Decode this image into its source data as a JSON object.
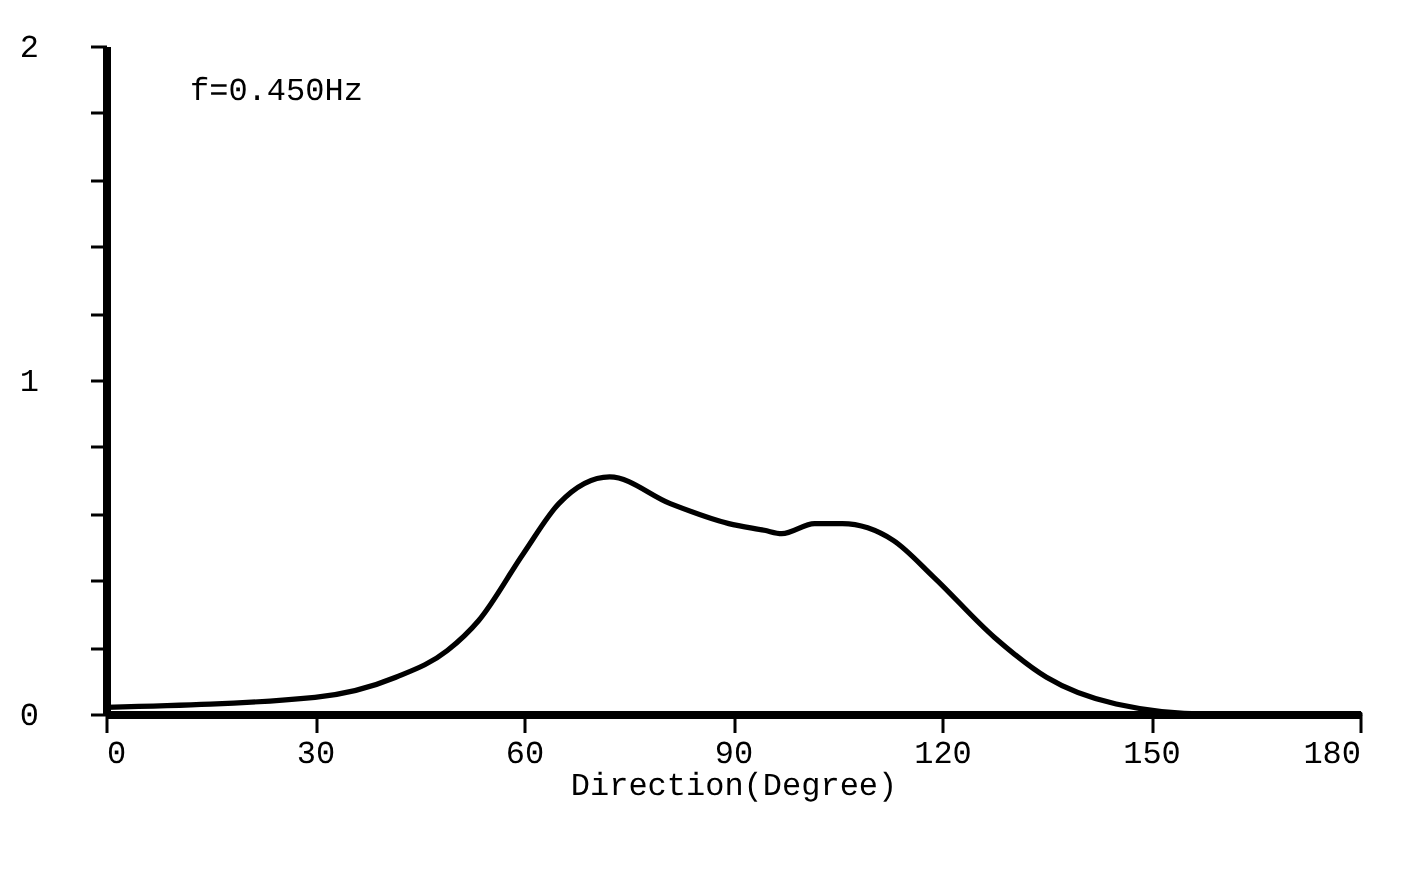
{
  "chart_data": {
    "type": "line",
    "xlabel": "Direction(Degree)",
    "annotations": [
      "f=0.450Hz"
    ],
    "x": [
      0,
      30,
      41.6,
      49,
      53.5,
      59.9,
      65,
      72.3,
      81,
      89.4,
      94.5,
      97,
      101.7,
      105.7,
      113,
      118.8,
      127.5,
      135,
      145,
      158,
      180
    ],
    "series": [
      {
        "color": "#000000",
        "values": [
          0.02,
          0.05,
          0.11,
          0.19,
          0.28,
          0.48,
          0.63,
          0.71,
          0.63,
          0.57,
          0.55,
          0.54,
          0.57,
          0.57,
          0.52,
          0.41,
          0.23,
          0.11,
          0.03,
          0,
          0
        ]
      }
    ],
    "xlim": [
      0,
      180
    ],
    "xticks": [
      0,
      30,
      60,
      90,
      120,
      150,
      180
    ],
    "ylim": [
      0,
      2
    ],
    "yticks": [
      0,
      {
        "value": 0.2,
        "label": null
      },
      {
        "value": 0.4,
        "label": null
      },
      {
        "value": 0.6,
        "label": null
      },
      {
        "value": 0.8,
        "label": null
      },
      1,
      {
        "value": 1.2,
        "label": null
      },
      {
        "value": 1.4,
        "label": null
      },
      {
        "value": 1.6,
        "label": null
      },
      {
        "value": 1.8,
        "label": null
      },
      2
    ],
    "grid": false,
    "marker": "none",
    "line_style": "solid"
  }
}
